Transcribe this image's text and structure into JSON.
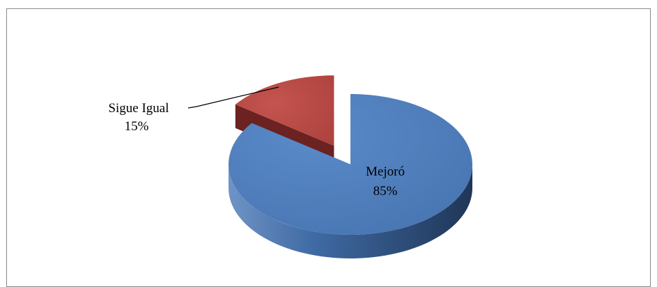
{
  "chart_data": {
    "type": "pie",
    "style": "3d-exploded",
    "categories": [
      "Mejoró",
      "Sigue Igual"
    ],
    "values": [
      85,
      15
    ],
    "labels": [
      {
        "name": "Mejoró",
        "percent": "85%"
      },
      {
        "name": "Sigue Igual",
        "percent": "15%"
      }
    ],
    "colors": {
      "Mejoró": "#4f81bd",
      "Sigue Igual": "#c0504d"
    },
    "title": "",
    "legend": "none"
  }
}
